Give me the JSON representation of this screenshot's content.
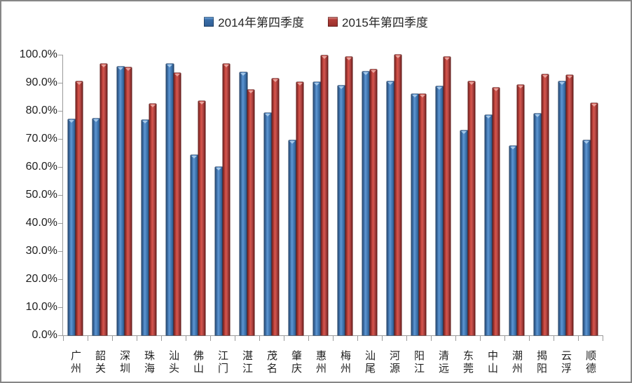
{
  "frame": {
    "background": "#ffffff",
    "border_color": "#868686"
  },
  "legend": {
    "items": [
      {
        "label": "2014年第四季度",
        "color": "#4F81BD"
      },
      {
        "label": "2015年第四季度",
        "color": "#C0504D"
      }
    ]
  },
  "chart_data": {
    "type": "bar",
    "title": "",
    "xlabel": "",
    "ylabel": "",
    "ylim": [
      0,
      100
    ],
    "ytick_step": 10,
    "grid": false,
    "legend_position": "top-center",
    "value_format": "percent",
    "ytick_labels_top_to_bottom": [
      "100.0%",
      "90.0%",
      "80.0%",
      "70.0%",
      "60.0%",
      "50.0%",
      "40.0%",
      "30.0%",
      "20.0%",
      "10.0%",
      "0.0%"
    ],
    "categories": [
      "广州",
      "韶关",
      "深圳",
      "珠海",
      "汕头",
      "佛山",
      "江门",
      "湛江",
      "茂名",
      "肇庆",
      "惠州",
      "梅州",
      "汕尾",
      "河源",
      "阳江",
      "清远",
      "东莞",
      "中山",
      "潮州",
      "揭阳",
      "云浮",
      "顺德"
    ],
    "series": [
      {
        "name": "2014年第四季度",
        "color": "#4F81BD",
        "values": [
          77.0,
          77.2,
          95.7,
          76.7,
          96.8,
          64.2,
          59.9,
          93.7,
          79.3,
          69.6,
          90.2,
          88.9,
          93.9,
          90.5,
          86.0,
          88.8,
          73.0,
          78.5,
          67.5,
          79.0,
          90.5,
          69.4
        ]
      },
      {
        "name": "2015年第四季度",
        "color": "#C0504D",
        "values": [
          90.4,
          96.8,
          95.5,
          82.6,
          93.6,
          83.6,
          96.8,
          87.6,
          91.5,
          90.2,
          99.8,
          99.2,
          94.8,
          99.9,
          86.0,
          99.2,
          90.6,
          88.3,
          89.2,
          93.1,
          92.7,
          82.8
        ]
      }
    ]
  }
}
